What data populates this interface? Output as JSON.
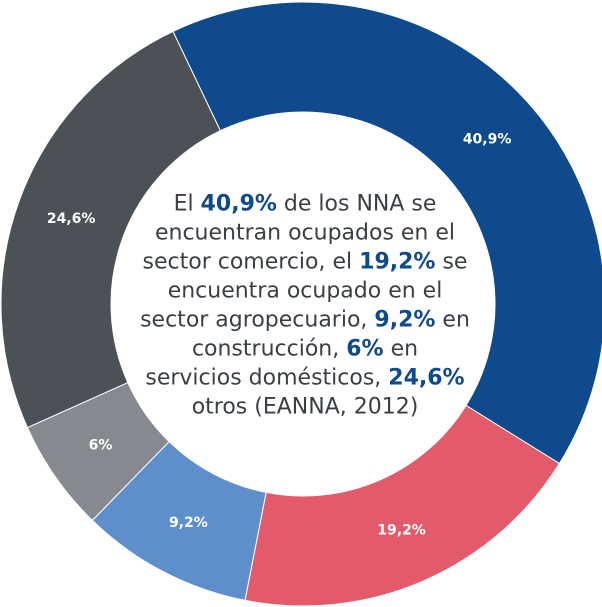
{
  "chart_data": {
    "type": "donut",
    "categories": [
      "Comercio",
      "Agropecuario",
      "Construcción",
      "Servicios domésticos",
      "Otros"
    ],
    "values": [
      40.9,
      19.2,
      9.2,
      6,
      24.6
    ],
    "value_labels": [
      "40,9%",
      "19,2%",
      "9,2%",
      "6%",
      "24,6%"
    ],
    "colors": [
      "#0e4a8c",
      "#e35b6b",
      "#5e8fcb",
      "#868990",
      "#4c5158"
    ],
    "annotation_lines": [
      [
        "El ",
        {
          "text": "40,9%",
          "bold": true
        },
        " de los NNA se"
      ],
      [
        "encuentran ocupados en el"
      ],
      [
        "sector comercio, el ",
        {
          "text": "19,2%",
          "bold": true
        },
        " se"
      ],
      [
        "encuentra ocupado en el"
      ],
      [
        "sector agropecuario, ",
        {
          "text": "9,2%",
          "bold": true
        },
        " en"
      ],
      [
        "construcción, ",
        {
          "text": "6%",
          "bold": true
        },
        " en"
      ],
      [
        "servicios domésticos, ",
        {
          "text": "24,6%",
          "bold": true
        }
      ],
      [
        "otros (EANNA, 2012)"
      ]
    ]
  }
}
